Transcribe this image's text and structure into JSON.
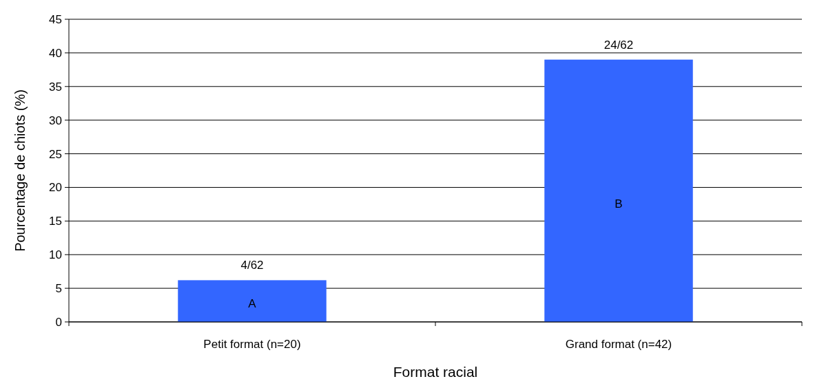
{
  "chart_data": {
    "type": "bar",
    "xlabel": "Format racial",
    "ylabel": "Pourcentage de chiots (%)",
    "categories": [
      "Petit format (n=20)",
      "Grand format (n=42)"
    ],
    "values": [
      6.2,
      39
    ],
    "value_labels": [
      "4/62",
      "24/62"
    ],
    "color": "#3366ff",
    "ylim": [
      0,
      45
    ],
    "yticks": [
      0,
      5,
      10,
      15,
      20,
      25,
      30,
      35,
      40,
      45
    ],
    "grid": "y",
    "annotations": [
      "A",
      "B"
    ]
  }
}
